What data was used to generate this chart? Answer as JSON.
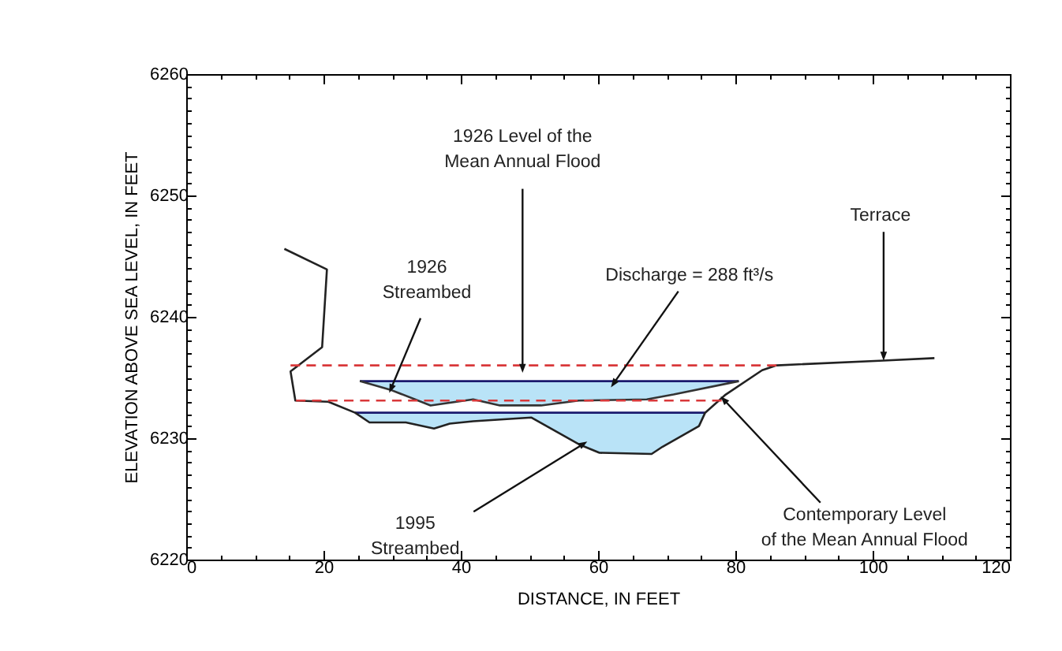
{
  "chart_data": {
    "type": "line",
    "xlabel": "DISTANCE, IN FEET",
    "ylabel": "ELEVATION ABOVE SEA LEVEL, IN FEET",
    "xlim": [
      0,
      120
    ],
    "ylim": [
      6220,
      6260
    ],
    "xticks": [
      0,
      {
        "value": 5,
        "label": null
      },
      {
        "value": 10,
        "label": null
      },
      {
        "value": 15,
        "label": null
      },
      20,
      {
        "value": 25,
        "label": null
      },
      {
        "value": 30,
        "label": null
      },
      {
        "value": 35,
        "label": null
      },
      40,
      {
        "value": 45,
        "label": null
      },
      {
        "value": 50,
        "label": null
      },
      {
        "value": 55,
        "label": null
      },
      60,
      {
        "value": 65,
        "label": null
      },
      {
        "value": 70,
        "label": null
      },
      {
        "value": 75,
        "label": null
      },
      80,
      {
        "value": 85,
        "label": null
      },
      {
        "value": 90,
        "label": null
      },
      {
        "value": 95,
        "label": null
      },
      100,
      {
        "value": 105,
        "label": null
      },
      {
        "value": 110,
        "label": null
      },
      {
        "value": 115,
        "label": null
      },
      120
    ],
    "yticks": [
      6220,
      {
        "value": 6221,
        "label": null
      },
      {
        "value": 6222,
        "label": null
      },
      {
        "value": 6223,
        "label": null
      },
      {
        "value": 6224,
        "label": null
      },
      {
        "value": 6225,
        "label": null
      },
      {
        "value": 6226,
        "label": null
      },
      {
        "value": 6227,
        "label": null
      },
      {
        "value": 6228,
        "label": null
      },
      {
        "value": 6229,
        "label": null
      },
      6230,
      {
        "value": 6231,
        "label": null
      },
      {
        "value": 6232,
        "label": null
      },
      {
        "value": 6233,
        "label": null
      },
      {
        "value": 6234,
        "label": null
      },
      {
        "value": 6235,
        "label": null
      },
      {
        "value": 6236,
        "label": null
      },
      {
        "value": 6237,
        "label": null
      },
      {
        "value": 6238,
        "label": null
      },
      {
        "value": 6239,
        "label": null
      },
      6240,
      {
        "value": 6241,
        "label": null
      },
      {
        "value": 6242,
        "label": null
      },
      {
        "value": 6243,
        "label": null
      },
      {
        "value": 6244,
        "label": null
      },
      {
        "value": 6245,
        "label": null
      },
      {
        "value": 6246,
        "label": null
      },
      {
        "value": 6247,
        "label": null
      },
      {
        "value": 6248,
        "label": null
      },
      {
        "value": 6249,
        "label": null
      },
      6250,
      {
        "value": 6251,
        "label": null
      },
      {
        "value": 6252,
        "label": null
      },
      {
        "value": 6253,
        "label": null
      },
      {
        "value": 6254,
        "label": null
      },
      {
        "value": 6255,
        "label": null
      },
      {
        "value": 6256,
        "label": null
      },
      {
        "value": 6257,
        "label": null
      },
      {
        "value": 6258,
        "label": null
      },
      {
        "value": 6259,
        "label": null
      },
      6260
    ],
    "grid": false,
    "series": [
      {
        "color": "#1a1a6e",
        "x": [
          25.3,
          29.7,
          35.6,
          41.8,
          45.7,
          51.7,
          57.2,
          67.1,
          71,
          80.5
        ],
        "values": [
          6234.7,
          6234.7,
          6234.7,
          6234.7,
          6234.7,
          6234.7,
          6234.7,
          6234.7,
          6234.7,
          6234.7
        ],
        "lower": [
          6234.7,
          6234,
          6232.7,
          6233.2,
          6232.7,
          6232.7,
          6233.1,
          6233.2,
          6233.6,
          6234.7
        ],
        "upper": [
          6234.7,
          6234.7,
          6234.7,
          6234.7,
          6234.7,
          6234.7,
          6234.7,
          6234.7,
          6234.7,
          6234.7
        ]
      },
      {
        "color": "#1a1a6e",
        "x": [
          24.6,
          26.7,
          32,
          36.1,
          38.4,
          41.8,
          50.3,
          57.2,
          60.2,
          67.8,
          69.4,
          74.7,
          75.6
        ],
        "values": [
          6232.1,
          6232.1,
          6232.1,
          6232.1,
          6232.1,
          6232.1,
          6232.1,
          6232.1,
          6232.1,
          6232.1,
          6232.1,
          6232.1,
          6232.1
        ],
        "lower": [
          6232.1,
          6231.3,
          6231.3,
          6230.8,
          6231.2,
          6231.4,
          6231.7,
          6229.5,
          6228.8,
          6228.7,
          6229.3,
          6231,
          6232.1
        ],
        "upper": [
          6232.1,
          6232.1,
          6232.1,
          6232.1,
          6232.1,
          6232.1,
          6232.1,
          6232.1,
          6232.1,
          6232.1,
          6232.1,
          6232.1,
          6232.1
        ]
      },
      {
        "color": "#333333",
        "x": [
          25.3,
          29.7,
          35.6,
          41.8,
          45.7,
          51.7,
          57.2,
          67.1,
          71,
          80.5
        ],
        "values": [
          6234.7,
          6234,
          6232.7,
          6233.2,
          6232.7,
          6232.7,
          6233.1,
          6233.2,
          6233.6,
          6234.7
        ]
      },
      {
        "color": "#222222",
        "x": [
          14.3,
          20.5,
          19.8,
          15.2,
          15.9,
          20.7,
          24.6,
          26.7,
          32,
          36.1,
          38.4,
          41.8,
          50.3,
          57.2,
          60.2,
          67.8,
          69.4,
          74.7,
          75.6,
          78.6,
          83.9,
          86,
          101.6,
          109
        ],
        "values": [
          6245.6,
          6243.9,
          6237.5,
          6235.5,
          6233.1,
          6233,
          6232.1,
          6231.3,
          6231.3,
          6230.8,
          6231.2,
          6231.4,
          6231.7,
          6229.5,
          6228.8,
          6228.7,
          6229.3,
          6231,
          6232.1,
          6233.6,
          6235.6,
          6236,
          6236.4,
          6236.6
        ]
      },
      {
        "color": "#d9383a",
        "line_style": "dashed",
        "x": [
          15.2,
          86
        ],
        "values": [
          6236,
          6236
        ]
      },
      {
        "color": "#d9383a",
        "line_style": "dashed",
        "x": [
          16,
          78
        ],
        "values": [
          6233.1,
          6233.1
        ]
      }
    ],
    "annotations": [
      {
        "text": "1926 Level of the\nMean Annual Flood",
        "x": 49,
        "y": 6236
      },
      {
        "text": "1926\nStreambed",
        "x": 30,
        "y": 6234.3
      },
      {
        "text": "Discharge = 288 ft³/s",
        "x": 62.5,
        "y": 6234.7
      },
      {
        "text": "Terrace",
        "x": 101.6,
        "y": 6237
      },
      {
        "text": "1995\nStreambed",
        "x": 57.5,
        "y": 6229.4
      },
      {
        "text": "Contemporary Level\nof the Mean Annual Flood",
        "x": 78.6,
        "y": 6233
      }
    ]
  }
}
